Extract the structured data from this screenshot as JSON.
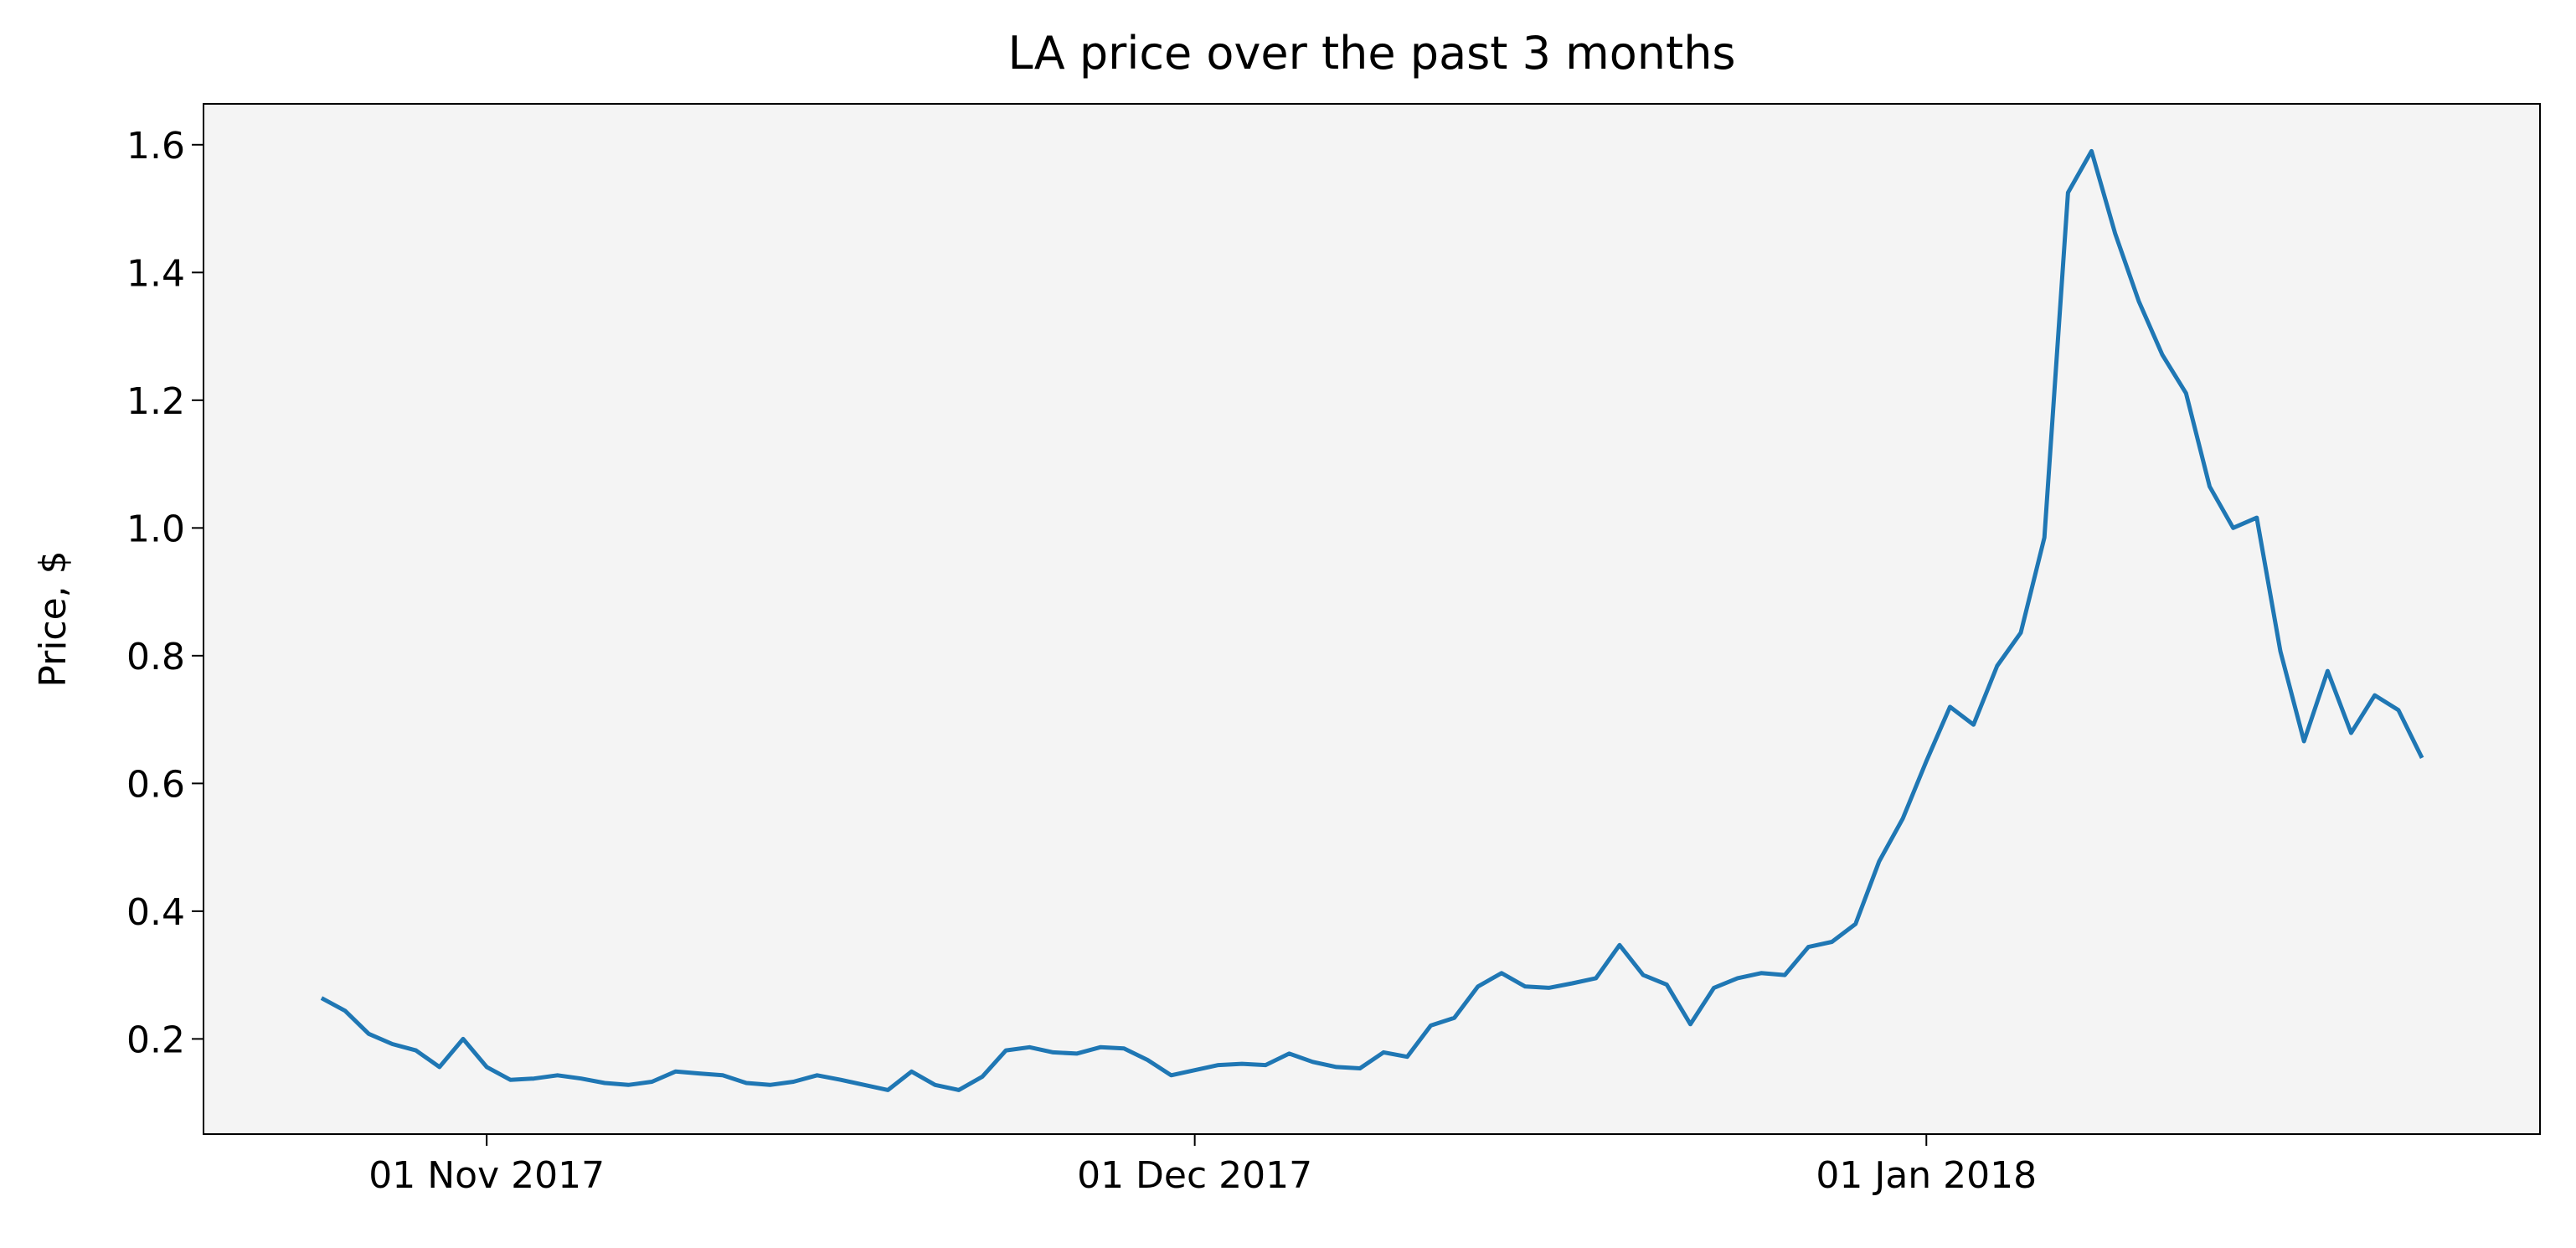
{
  "chart_data": {
    "type": "line",
    "title": "LA price over the past 3 months",
    "ylabel": "Price, $",
    "x": [
      "2017-10-25",
      "2017-10-26",
      "2017-10-27",
      "2017-10-28",
      "2017-10-29",
      "2017-10-30",
      "2017-10-31",
      "2017-11-01",
      "2017-11-02",
      "2017-11-03",
      "2017-11-04",
      "2017-11-05",
      "2017-11-06",
      "2017-11-07",
      "2017-11-08",
      "2017-11-09",
      "2017-11-10",
      "2017-11-11",
      "2017-11-12",
      "2017-11-13",
      "2017-11-14",
      "2017-11-15",
      "2017-11-16",
      "2017-11-17",
      "2017-11-18",
      "2017-11-19",
      "2017-11-20",
      "2017-11-21",
      "2017-11-22",
      "2017-11-23",
      "2017-11-24",
      "2017-11-25",
      "2017-11-26",
      "2017-11-27",
      "2017-11-28",
      "2017-11-29",
      "2017-11-30",
      "2017-12-01",
      "2017-12-02",
      "2017-12-03",
      "2017-12-04",
      "2017-12-05",
      "2017-12-06",
      "2017-12-07",
      "2017-12-08",
      "2017-12-09",
      "2017-12-10",
      "2017-12-11",
      "2017-12-12",
      "2017-12-13",
      "2017-12-14",
      "2017-12-15",
      "2017-12-16",
      "2017-12-17",
      "2017-12-18",
      "2017-12-19",
      "2017-12-20",
      "2017-12-21",
      "2017-12-22",
      "2017-12-23",
      "2017-12-24",
      "2017-12-25",
      "2017-12-26",
      "2017-12-27",
      "2017-12-28",
      "2017-12-29",
      "2017-12-30",
      "2017-12-31",
      "2018-01-01",
      "2018-01-02",
      "2018-01-03",
      "2018-01-04",
      "2018-01-05",
      "2018-01-06",
      "2018-01-07",
      "2018-01-08",
      "2018-01-09",
      "2018-01-10",
      "2018-01-11",
      "2018-01-12",
      "2018-01-13",
      "2018-01-14",
      "2018-01-15",
      "2018-01-16",
      "2018-01-17",
      "2018-01-18",
      "2018-01-19",
      "2018-01-20",
      "2018-01-21",
      "2018-01-22"
    ],
    "series": [
      {
        "name": "LA",
        "color": "#1f77b4",
        "values": [
          0.264,
          0.244,
          0.208,
          0.192,
          0.182,
          0.156,
          0.2,
          0.156,
          0.136,
          0.138,
          0.143,
          0.138,
          0.131,
          0.128,
          0.133,
          0.149,
          0.146,
          0.143,
          0.131,
          0.128,
          0.133,
          0.143,
          0.136,
          0.128,
          0.12,
          0.149,
          0.128,
          0.12,
          0.141,
          0.182,
          0.187,
          0.179,
          0.177,
          0.187,
          0.185,
          0.167,
          0.143,
          0.151,
          0.159,
          0.161,
          0.159,
          0.177,
          0.164,
          0.156,
          0.154,
          0.179,
          0.172,
          0.221,
          0.233,
          0.282,
          0.303,
          0.282,
          0.28,
          0.287,
          0.295,
          0.347,
          0.3,
          0.285,
          0.223,
          0.28,
          0.295,
          0.303,
          0.3,
          0.344,
          0.352,
          0.38,
          0.478,
          0.545,
          0.635,
          0.72,
          0.692,
          0.784,
          0.836,
          0.985,
          1.525,
          1.59,
          1.461,
          1.355,
          1.271,
          1.211,
          1.065,
          1.0,
          1.016,
          0.807,
          0.666,
          0.776,
          0.679,
          0.738,
          0.715,
          0.64
        ]
      }
    ],
    "xlim": [
      "2017-10-20",
      "2018-01-27"
    ],
    "xticks": [
      {
        "value": "2017-11-01",
        "label": "01 Nov 2017"
      },
      {
        "value": "2017-12-01",
        "label": "01 Dec 2017"
      },
      {
        "value": "2018-01-01",
        "label": "01 Jan 2018"
      }
    ],
    "ylim": [
      0.051,
      1.664
    ],
    "yticks": [
      0.2,
      0.4,
      0.6,
      0.8,
      {
        "value": 1,
        "label": "1.0"
      },
      1.2,
      1.4,
      1.6
    ],
    "background": "#f4f4f4"
  }
}
